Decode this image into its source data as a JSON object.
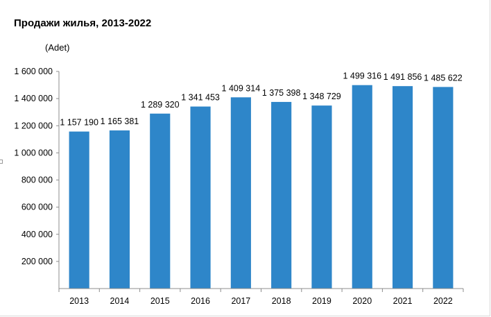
{
  "chart_data": {
    "type": "bar",
    "title": "Продажи жилья, 2013-2022",
    "unit_label": "(Adet)",
    "xlabel": "",
    "ylabel": "",
    "categories": [
      "2013",
      "2014",
      "2015",
      "2016",
      "2017",
      "2018",
      "2019",
      "2020",
      "2021",
      "2022"
    ],
    "values": [
      1157190,
      1165381,
      1289320,
      1341453,
      1409314,
      1375398,
      1348729,
      1499316,
      1491856,
      1485622
    ],
    "value_labels": [
      "1 157 190",
      "1 165 381",
      "1 289 320",
      "1 341 453",
      "1 409 314",
      "1 375 398",
      "1 348 729",
      "1 499 316",
      "1 491 856",
      "1 485 622"
    ],
    "ylim": [
      0,
      1600000
    ],
    "yticks": [
      200000,
      400000,
      600000,
      800000,
      1000000,
      1200000,
      1400000,
      1600000
    ],
    "ytick_labels": [
      "200 000",
      "400 000",
      "600 000",
      "800 000",
      "1 000 000",
      "1 200 000",
      "1 400 000",
      "1 600 000"
    ],
    "grid": false,
    "legend": "none",
    "bar_color": "#2e86c9"
  }
}
